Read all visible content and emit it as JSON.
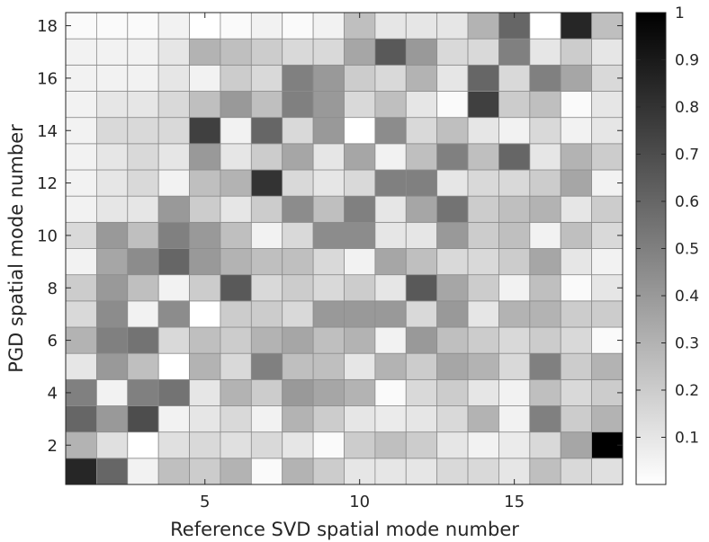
{
  "chart_data": {
    "type": "heatmap",
    "title": "",
    "xlabel": "Reference SVD spatial mode number",
    "ylabel": "PGD spatial mode number",
    "x_range": [
      1,
      18
    ],
    "y_range": [
      1,
      18
    ],
    "x_ticks": [
      5,
      10,
      15
    ],
    "y_ticks": [
      2,
      4,
      6,
      8,
      10,
      12,
      14,
      16,
      18
    ],
    "colorbar": {
      "min": 0,
      "max": 1,
      "ticks": [
        0.1,
        0.2,
        0.3,
        0.4,
        0.5,
        0.6,
        0.7,
        0.8,
        0.9,
        1
      ],
      "colormap": "gray-reversed",
      "low_color": "#ffffff",
      "high_color": "#000000"
    },
    "z_rows_description": "rows ordered by PGD mode 1..18 (bottom to top), columns by SVD mode 1..18 (left to right)",
    "z": [
      [
        0.85,
        0.6,
        0.05,
        0.25,
        0.2,
        0.3,
        0.02,
        0.3,
        0.2,
        0.1,
        0.1,
        0.1,
        0.15,
        0.15,
        0.1,
        0.25,
        0.15,
        0.12
      ],
      [
        0.3,
        0.12,
        0.0,
        0.12,
        0.15,
        0.12,
        0.15,
        0.1,
        0.02,
        0.2,
        0.25,
        0.2,
        0.1,
        0.05,
        0.08,
        0.15,
        0.35,
        1.0
      ],
      [
        0.6,
        0.4,
        0.7,
        0.05,
        0.1,
        0.15,
        0.05,
        0.3,
        0.2,
        0.1,
        0.08,
        0.1,
        0.15,
        0.3,
        0.05,
        0.5,
        0.2,
        0.3
      ],
      [
        0.5,
        0.05,
        0.5,
        0.55,
        0.1,
        0.3,
        0.2,
        0.4,
        0.35,
        0.3,
        0.02,
        0.15,
        0.2,
        0.1,
        0.05,
        0.25,
        0.15,
        0.2
      ],
      [
        0.1,
        0.4,
        0.25,
        0.0,
        0.3,
        0.15,
        0.5,
        0.25,
        0.25,
        0.1,
        0.3,
        0.2,
        0.35,
        0.3,
        0.15,
        0.5,
        0.2,
        0.3
      ],
      [
        0.3,
        0.5,
        0.55,
        0.15,
        0.25,
        0.2,
        0.3,
        0.35,
        0.25,
        0.3,
        0.05,
        0.4,
        0.25,
        0.2,
        0.15,
        0.2,
        0.15,
        0.02
      ],
      [
        0.15,
        0.45,
        0.05,
        0.45,
        0.0,
        0.2,
        0.2,
        0.15,
        0.4,
        0.4,
        0.4,
        0.15,
        0.4,
        0.1,
        0.3,
        0.3,
        0.2,
        0.2
      ],
      [
        0.2,
        0.4,
        0.25,
        0.05,
        0.2,
        0.65,
        0.15,
        0.2,
        0.15,
        0.2,
        0.1,
        0.65,
        0.35,
        0.2,
        0.05,
        0.25,
        0.02,
        0.1
      ],
      [
        0.05,
        0.35,
        0.45,
        0.6,
        0.4,
        0.3,
        0.25,
        0.25,
        0.15,
        0.05,
        0.35,
        0.25,
        0.15,
        0.15,
        0.2,
        0.35,
        0.1,
        0.05
      ],
      [
        0.15,
        0.4,
        0.25,
        0.5,
        0.4,
        0.25,
        0.05,
        0.15,
        0.45,
        0.45,
        0.1,
        0.1,
        0.4,
        0.2,
        0.25,
        0.05,
        0.25,
        0.15
      ],
      [
        0.05,
        0.1,
        0.1,
        0.4,
        0.2,
        0.1,
        0.2,
        0.45,
        0.25,
        0.5,
        0.1,
        0.35,
        0.55,
        0.2,
        0.25,
        0.3,
        0.1,
        0.2
      ],
      [
        0.05,
        0.1,
        0.15,
        0.05,
        0.25,
        0.3,
        0.8,
        0.15,
        0.1,
        0.15,
        0.5,
        0.5,
        0.1,
        0.15,
        0.15,
        0.2,
        0.35,
        0.05
      ],
      [
        0.05,
        0.1,
        0.15,
        0.1,
        0.4,
        0.1,
        0.2,
        0.35,
        0.1,
        0.35,
        0.05,
        0.25,
        0.5,
        0.25,
        0.6,
        0.1,
        0.3,
        0.2
      ],
      [
        0.05,
        0.15,
        0.15,
        0.15,
        0.75,
        0.05,
        0.6,
        0.15,
        0.4,
        0.0,
        0.45,
        0.15,
        0.25,
        0.1,
        0.05,
        0.15,
        0.05,
        0.1
      ],
      [
        0.05,
        0.1,
        0.1,
        0.15,
        0.25,
        0.4,
        0.25,
        0.5,
        0.4,
        0.15,
        0.25,
        0.1,
        0.02,
        0.75,
        0.2,
        0.25,
        0.02,
        0.1
      ],
      [
        0.05,
        0.05,
        0.05,
        0.1,
        0.05,
        0.2,
        0.15,
        0.5,
        0.4,
        0.2,
        0.15,
        0.3,
        0.1,
        0.6,
        0.15,
        0.5,
        0.35,
        0.15
      ],
      [
        0.05,
        0.05,
        0.05,
        0.1,
        0.3,
        0.25,
        0.2,
        0.15,
        0.15,
        0.35,
        0.65,
        0.4,
        0.15,
        0.15,
        0.5,
        0.1,
        0.2,
        0.1
      ],
      [
        0.02,
        0.02,
        0.02,
        0.05,
        0.0,
        0.02,
        0.05,
        0.02,
        0.05,
        0.25,
        0.1,
        0.1,
        0.1,
        0.3,
        0.6,
        0.0,
        0.85,
        0.25
      ]
    ]
  }
}
